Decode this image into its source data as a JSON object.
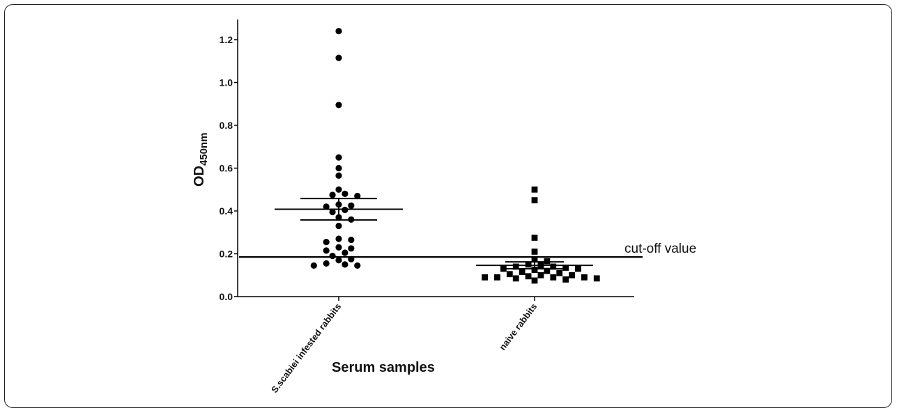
{
  "chart_data": {
    "type": "scatter",
    "xlabel": "Serum samples",
    "ylabel_main": "OD",
    "ylabel_sub": "450nm",
    "ylim": [
      0,
      1.3
    ],
    "yticks": [
      "0.0",
      "0.2",
      "0.4",
      "0.6",
      "0.8",
      "1.0",
      "1.2"
    ],
    "categories": [
      "S.scabiei infested rabbits",
      "naive rabbits"
    ],
    "series": [
      {
        "marker": "circle",
        "values": [
          1.24,
          1.115,
          0.895,
          0.65,
          0.6,
          0.565,
          0.5,
          0.48,
          0.47,
          0.475,
          0.425,
          0.43,
          0.42,
          0.405,
          0.395,
          0.37,
          0.36,
          0.33,
          0.27,
          0.265,
          0.255,
          0.23,
          0.225,
          0.215,
          0.205,
          0.19,
          0.17,
          0.175,
          0.155,
          0.15,
          0.145,
          0.145
        ],
        "mean": 0.408,
        "sem_low": 0.358,
        "sem_high": 0.458
      },
      {
        "marker": "square",
        "values": [
          0.5,
          0.45,
          0.275,
          0.21,
          0.175,
          0.165,
          0.15,
          0.145,
          0.14,
          0.14,
          0.135,
          0.13,
          0.13,
          0.125,
          0.12,
          0.115,
          0.11,
          0.105,
          0.1,
          0.1,
          0.095,
          0.09,
          0.09,
          0.09,
          0.09,
          0.085,
          0.085,
          0.08,
          0.075
        ],
        "mean": 0.146,
        "sem_low": 0.13,
        "sem_high": 0.162
      }
    ],
    "cutoff": {
      "value": 0.185,
      "label": "cut-off value"
    },
    "colors": {
      "markers": "#000000",
      "axes": "#000000"
    }
  }
}
